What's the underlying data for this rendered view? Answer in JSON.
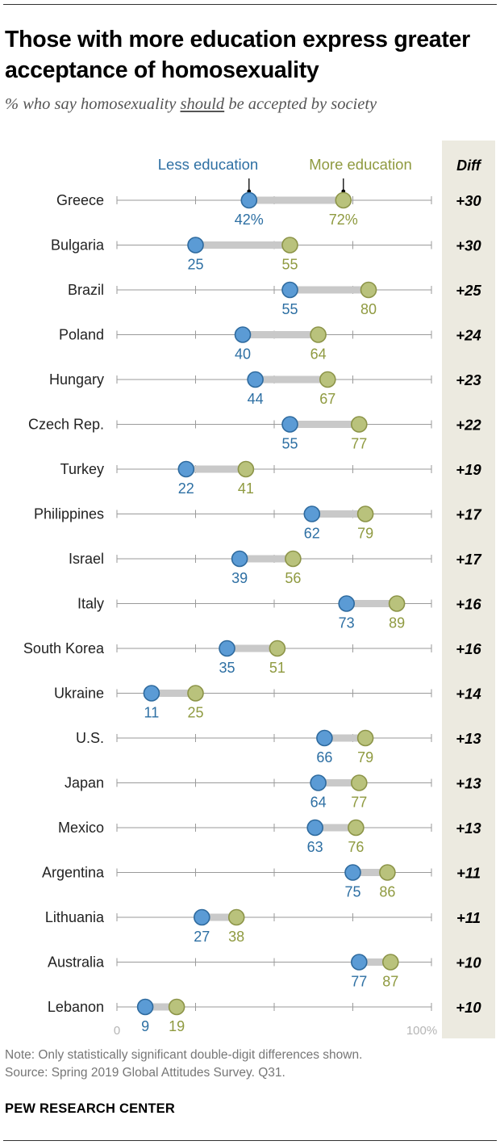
{
  "header": {
    "title": "Those with more education express greater acceptance of homosexuality",
    "subtitle_before": "% who say homosexuality ",
    "subtitle_underlined": "should",
    "subtitle_after": " be accepted by society"
  },
  "colors": {
    "less": "#5b9bd5",
    "less_stroke": "#2e6a9e",
    "less_text": "#2d6fa3",
    "more": "#b9c27c",
    "more_stroke": "#8c9448",
    "more_text": "#8f9a40",
    "connector": "#c9c9c9",
    "axis": "#9a9a9a",
    "diff_panel": "#eceae0"
  },
  "chart_data": {
    "type": "dumbbell",
    "title": "Those with more education express greater acceptance of homosexuality",
    "legend": {
      "less": "Less education",
      "more": "More education"
    },
    "diff_header": "Diff",
    "xlim": [
      0,
      100
    ],
    "ticks": [
      0,
      25,
      50,
      75,
      100
    ],
    "tick_labels": {
      "min": "0",
      "max": "100%"
    },
    "series": [
      {
        "name": "Less education",
        "values": [
          42,
          25,
          55,
          40,
          44,
          55,
          22,
          62,
          39,
          73,
          35,
          11,
          66,
          64,
          63,
          75,
          27,
          77,
          9
        ]
      },
      {
        "name": "More education",
        "values": [
          72,
          55,
          80,
          64,
          67,
          77,
          41,
          79,
          56,
          89,
          51,
          25,
          79,
          77,
          76,
          86,
          38,
          87,
          19
        ]
      }
    ],
    "rows": [
      {
        "country": "Greece",
        "less": 42,
        "more": 72,
        "less_label": "42%",
        "more_label": "72%",
        "diff": "+30"
      },
      {
        "country": "Bulgaria",
        "less": 25,
        "more": 55,
        "less_label": "25",
        "more_label": "55",
        "diff": "+30"
      },
      {
        "country": "Brazil",
        "less": 55,
        "more": 80,
        "less_label": "55",
        "more_label": "80",
        "diff": "+25"
      },
      {
        "country": "Poland",
        "less": 40,
        "more": 64,
        "less_label": "40",
        "more_label": "64",
        "diff": "+24"
      },
      {
        "country": "Hungary",
        "less": 44,
        "more": 67,
        "less_label": "44",
        "more_label": "67",
        "diff": "+23"
      },
      {
        "country": "Czech Rep.",
        "less": 55,
        "more": 77,
        "less_label": "55",
        "more_label": "77",
        "diff": "+22"
      },
      {
        "country": "Turkey",
        "less": 22,
        "more": 41,
        "less_label": "22",
        "more_label": "41",
        "diff": "+19"
      },
      {
        "country": "Philippines",
        "less": 62,
        "more": 79,
        "less_label": "62",
        "more_label": "79",
        "diff": "+17"
      },
      {
        "country": "Israel",
        "less": 39,
        "more": 56,
        "less_label": "39",
        "more_label": "56",
        "diff": "+17"
      },
      {
        "country": "Italy",
        "less": 73,
        "more": 89,
        "less_label": "73",
        "more_label": "89",
        "diff": "+16"
      },
      {
        "country": "South Korea",
        "less": 35,
        "more": 51,
        "less_label": "35",
        "more_label": "51",
        "diff": "+16"
      },
      {
        "country": "Ukraine",
        "less": 11,
        "more": 25,
        "less_label": "11",
        "more_label": "25",
        "diff": "+14"
      },
      {
        "country": "U.S.",
        "less": 66,
        "more": 79,
        "less_label": "66",
        "more_label": "79",
        "diff": "+13"
      },
      {
        "country": "Japan",
        "less": 64,
        "more": 77,
        "less_label": "64",
        "more_label": "77",
        "diff": "+13"
      },
      {
        "country": "Mexico",
        "less": 63,
        "more": 76,
        "less_label": "63",
        "more_label": "76",
        "diff": "+13"
      },
      {
        "country": "Argentina",
        "less": 75,
        "more": 86,
        "less_label": "75",
        "more_label": "86",
        "diff": "+11"
      },
      {
        "country": "Lithuania",
        "less": 27,
        "more": 38,
        "less_label": "27",
        "more_label": "38",
        "diff": "+11"
      },
      {
        "country": "Australia",
        "less": 77,
        "more": 87,
        "less_label": "77",
        "more_label": "87",
        "diff": "+10"
      },
      {
        "country": "Lebanon",
        "less": 9,
        "more": 19,
        "less_label": "9",
        "more_label": "19",
        "diff": "+10"
      }
    ]
  },
  "footer": {
    "note": "Note: Only statistically significant double-digit differences shown.",
    "source": "Source: Spring 2019 Global Attitudes Survey. Q31.",
    "brand": "PEW RESEARCH CENTER"
  }
}
